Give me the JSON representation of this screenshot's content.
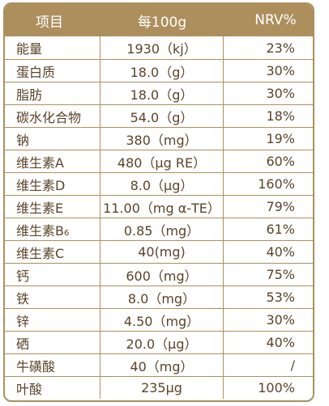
{
  "header": {
    "name": "项目",
    "amount": "每100g",
    "nrv": "NRV%"
  },
  "rows": [
    {
      "name": "能量",
      "amount": "1930（kj）",
      "nrv": "23%"
    },
    {
      "name": "蛋白质",
      "amount": "18.0（g）",
      "nrv": "30%"
    },
    {
      "name": "脂肪",
      "amount": "18.0（g）",
      "nrv": "30%"
    },
    {
      "name": "碳水化合物",
      "amount": "54.0（g）",
      "nrv": "18%"
    },
    {
      "name": "钠",
      "amount": "380（mg）",
      "nrv": "19%"
    },
    {
      "name": "维生素A",
      "amount": "480（μg RE）",
      "nrv": "60%"
    },
    {
      "name": "维生素D",
      "amount": "8.0（μg）",
      "nrv": "160%"
    },
    {
      "name": "维生素E",
      "amount": "11.00（mg α-TE）",
      "nrv": "79%"
    },
    {
      "name": "维生素B",
      "name_sub": "6",
      "amount": "0.85（mg）",
      "nrv": "61%"
    },
    {
      "name": "维生素C",
      "amount": "40(mg)",
      "nrv": "40%"
    },
    {
      "name": "钙",
      "amount": "600（mg）",
      "nrv": "75%"
    },
    {
      "name": "铁",
      "amount": "8.0（mg）",
      "nrv": "53%"
    },
    {
      "name": "锌",
      "amount": "4.50（mg）",
      "nrv": "30%"
    },
    {
      "name": "硒",
      "amount": "20.0（μg）",
      "nrv": "40%"
    },
    {
      "name": "牛磺酸",
      "amount": "40（mg）",
      "nrv": "/"
    },
    {
      "name": "叶酸",
      "amount": "235μg",
      "nrv": "100%"
    }
  ]
}
